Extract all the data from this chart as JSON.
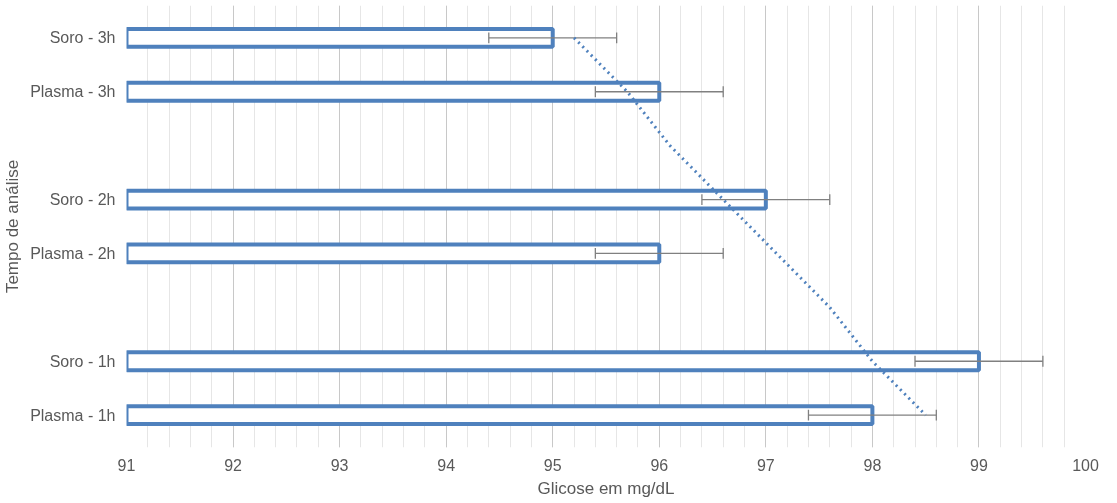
{
  "chart_data": {
    "type": "bar",
    "orientation": "horizontal",
    "xlabel": "Glicose em mg/dL",
    "ylabel": "Tempo de análise",
    "categories": [
      "Soro - 3h",
      "Plasma - 3h",
      null,
      "Soro - 2h",
      "Plasma - 2h",
      null,
      "Soro - 1h",
      "Plasma - 1h"
    ],
    "series": [
      {
        "color": "#4f81bd",
        "values": [
          95,
          96,
          null,
          97,
          96,
          null,
          99,
          98
        ],
        "errors": [
          0.6,
          0.6,
          null,
          0.6,
          0.6,
          null,
          0.6,
          0.6
        ]
      },
      {
        "type": "line",
        "color": "#4f81bd",
        "line_style": "dotted",
        "values": [
          95.2,
          95.7,
          96.1,
          96.6,
          97.1,
          97.6,
          98.0,
          98.5
        ]
      }
    ],
    "xlim": [
      91,
      100
    ],
    "xticks": [
      91,
      92,
      93,
      94,
      95,
      96,
      97,
      98,
      99,
      100
    ],
    "grid": "x"
  }
}
